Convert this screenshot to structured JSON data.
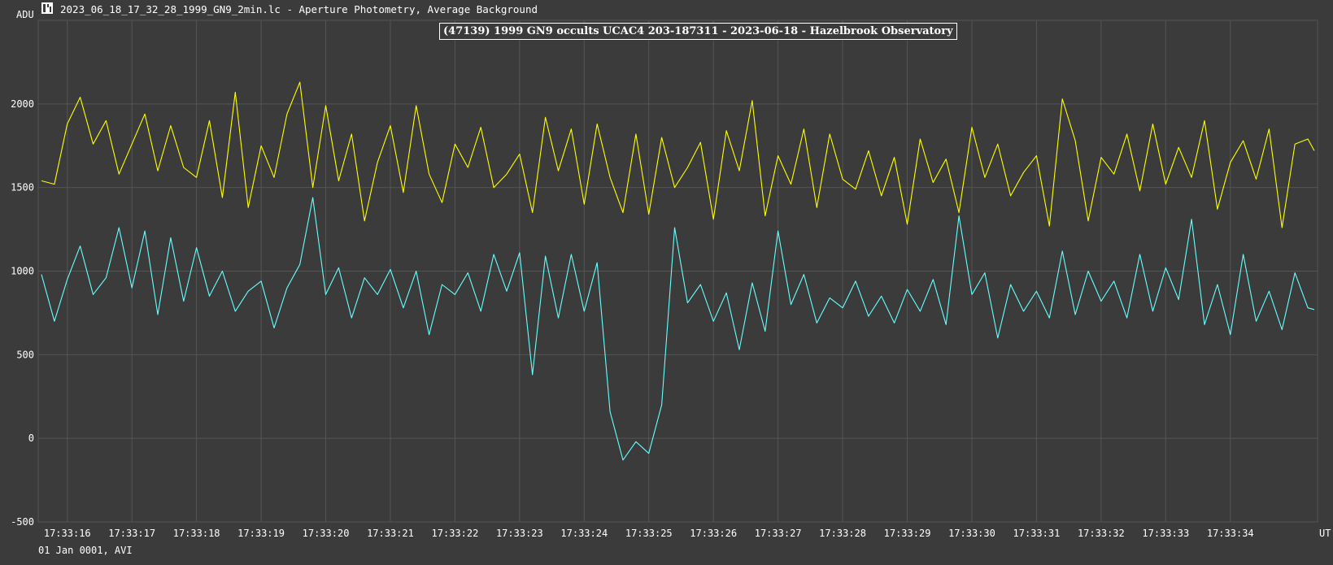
{
  "header": {
    "y_unit": "ADU",
    "file_title": "2023_06_18_17_32_28_1999_GN9_2min.lc - Aperture Photometry, Average Background",
    "icon": "lightcurve-app-icon"
  },
  "footer": {
    "x_unit": "UT",
    "date_info": "01 Jan 0001, AVI"
  },
  "colors": {
    "background": "#3b3b3b",
    "grid": "#555555",
    "comparison_series": "#ffff00",
    "target_series": "#66ffff",
    "text": "#ffffff"
  },
  "chart_data": {
    "type": "line",
    "title": "(47139) 1999 GN9 occults UCAC4 203-187311 - 2023-06-18 - Hazelbrook Observatory",
    "xlabel": "UT",
    "ylabel": "ADU",
    "ylim": [
      -500,
      2500
    ],
    "xlim": [
      "17:33:15.55",
      "17:33:35.35"
    ],
    "grid": true,
    "legend": "none",
    "y_ticks": [
      -500,
      0,
      500,
      1000,
      1500,
      2000
    ],
    "x_ticks": [
      "17:33:16",
      "17:33:17",
      "17:33:18",
      "17:33:19",
      "17:33:20",
      "17:33:21",
      "17:33:22",
      "17:33:23",
      "17:33:24",
      "17:33:25",
      "17:33:26",
      "17:33:27",
      "17:33:28",
      "17:33:29",
      "17:33:30",
      "17:33:31",
      "17:33:32",
      "17:33:33",
      "17:33:34"
    ],
    "series": [
      {
        "color": "#ffff00",
        "x": [
          "17:33:15.6",
          "17:33:15.8",
          "17:33:16.0",
          "17:33:16.2",
          "17:33:16.4",
          "17:33:16.6",
          "17:33:16.8",
          "17:33:17.0",
          "17:33:17.2",
          "17:33:17.4",
          "17:33:17.6",
          "17:33:17.8",
          "17:33:18.0",
          "17:33:18.2",
          "17:33:18.4",
          "17:33:18.6",
          "17:33:18.8",
          "17:33:19.0",
          "17:33:19.2",
          "17:33:19.4",
          "17:33:19.6",
          "17:33:19.8",
          "17:33:20.0",
          "17:33:20.2",
          "17:33:20.4",
          "17:33:20.6",
          "17:33:20.8",
          "17:33:21.0",
          "17:33:21.2",
          "17:33:21.4",
          "17:33:21.6",
          "17:33:21.8",
          "17:33:22.0",
          "17:33:22.2",
          "17:33:22.4",
          "17:33:22.6",
          "17:33:22.8",
          "17:33:23.0",
          "17:33:23.2",
          "17:33:23.4",
          "17:33:23.6",
          "17:33:23.8",
          "17:33:24.0",
          "17:33:24.2",
          "17:33:24.4",
          "17:33:24.6",
          "17:33:24.8",
          "17:33:25.0",
          "17:33:25.2",
          "17:33:25.4",
          "17:33:25.6",
          "17:33:25.8",
          "17:33:26.0",
          "17:33:26.2",
          "17:33:26.4",
          "17:33:26.6",
          "17:33:26.8",
          "17:33:27.0",
          "17:33:27.2",
          "17:33:27.4",
          "17:33:27.6",
          "17:33:27.8",
          "17:33:28.0",
          "17:33:28.2",
          "17:33:28.4",
          "17:33:28.6",
          "17:33:28.8",
          "17:33:29.0",
          "17:33:29.2",
          "17:33:29.4",
          "17:33:29.6",
          "17:33:29.8",
          "17:33:30.0",
          "17:33:30.2",
          "17:33:30.4",
          "17:33:30.6",
          "17:33:30.8",
          "17:33:31.0",
          "17:33:31.2",
          "17:33:31.4",
          "17:33:31.6",
          "17:33:31.8",
          "17:33:32.0",
          "17:33:32.2",
          "17:33:32.4",
          "17:33:32.6",
          "17:33:32.8",
          "17:33:33.0",
          "17:33:33.2",
          "17:33:33.4",
          "17:33:33.6",
          "17:33:33.8",
          "17:33:34.0",
          "17:33:34.2",
          "17:33:34.4",
          "17:33:34.6",
          "17:33:34.8",
          "17:33:35.0",
          "17:33:35.2",
          "17:33:35.3"
        ],
        "values": [
          1540,
          1520,
          1880,
          2040,
          1760,
          1900,
          1580,
          1760,
          1940,
          1600,
          1870,
          1620,
          1560,
          1900,
          1440,
          2070,
          1380,
          1750,
          1560,
          1940,
          2130,
          1500,
          1990,
          1540,
          1820,
          1300,
          1650,
          1870,
          1470,
          1990,
          1580,
          1410,
          1760,
          1620,
          1860,
          1500,
          1580,
          1700,
          1350,
          1920,
          1600,
          1850,
          1400,
          1880,
          1560,
          1350,
          1820,
          1340,
          1800,
          1500,
          1620,
          1770,
          1310,
          1840,
          1600,
          2020,
          1330,
          1690,
          1520,
          1850,
          1380,
          1820,
          1550,
          1490,
          1720,
          1450,
          1680,
          1280,
          1790,
          1530,
          1670,
          1350,
          1860,
          1560,
          1760,
          1450,
          1590,
          1690,
          1270,
          2030,
          1780,
          1300,
          1680,
          1580,
          1820,
          1480,
          1880,
          1520,
          1740,
          1560,
          1900,
          1370,
          1650,
          1780,
          1550,
          1850,
          1260,
          1760,
          1790,
          1720
        ]
      },
      {
        "color": "#66ffff",
        "x": [
          "17:33:15.6",
          "17:33:15.8",
          "17:33:16.0",
          "17:33:16.2",
          "17:33:16.4",
          "17:33:16.6",
          "17:33:16.8",
          "17:33:17.0",
          "17:33:17.2",
          "17:33:17.4",
          "17:33:17.6",
          "17:33:17.8",
          "17:33:18.0",
          "17:33:18.2",
          "17:33:18.4",
          "17:33:18.6",
          "17:33:18.8",
          "17:33:19.0",
          "17:33:19.2",
          "17:33:19.4",
          "17:33:19.6",
          "17:33:19.8",
          "17:33:20.0",
          "17:33:20.2",
          "17:33:20.4",
          "17:33:20.6",
          "17:33:20.8",
          "17:33:21.0",
          "17:33:21.2",
          "17:33:21.4",
          "17:33:21.6",
          "17:33:21.8",
          "17:33:22.0",
          "17:33:22.2",
          "17:33:22.4",
          "17:33:22.6",
          "17:33:22.8",
          "17:33:23.0",
          "17:33:23.2",
          "17:33:23.4",
          "17:33:23.6",
          "17:33:23.8",
          "17:33:24.0",
          "17:33:24.2",
          "17:33:24.4",
          "17:33:24.6",
          "17:33:24.8",
          "17:33:25.0",
          "17:33:25.2",
          "17:33:25.4",
          "17:33:25.6",
          "17:33:25.8",
          "17:33:26.0",
          "17:33:26.2",
          "17:33:26.4",
          "17:33:26.6",
          "17:33:26.8",
          "17:33:27.0",
          "17:33:27.2",
          "17:33:27.4",
          "17:33:27.6",
          "17:33:27.8",
          "17:33:28.0",
          "17:33:28.2",
          "17:33:28.4",
          "17:33:28.6",
          "17:33:28.8",
          "17:33:29.0",
          "17:33:29.2",
          "17:33:29.4",
          "17:33:29.6",
          "17:33:29.8",
          "17:33:30.0",
          "17:33:30.2",
          "17:33:30.4",
          "17:33:30.6",
          "17:33:30.8",
          "17:33:31.0",
          "17:33:31.2",
          "17:33:31.4",
          "17:33:31.6",
          "17:33:31.8",
          "17:33:32.0",
          "17:33:32.2",
          "17:33:32.4",
          "17:33:32.6",
          "17:33:32.8",
          "17:33:33.0",
          "17:33:33.2",
          "17:33:33.4",
          "17:33:33.6",
          "17:33:33.8",
          "17:33:34.0",
          "17:33:34.2",
          "17:33:34.4",
          "17:33:34.6",
          "17:33:34.8",
          "17:33:35.0",
          "17:33:35.2",
          "17:33:35.3"
        ],
        "values": [
          980,
          700,
          950,
          1150,
          860,
          960,
          1260,
          900,
          1240,
          740,
          1200,
          820,
          1140,
          850,
          1000,
          760,
          880,
          940,
          660,
          900,
          1040,
          1440,
          860,
          1020,
          720,
          960,
          860,
          1010,
          780,
          1000,
          620,
          920,
          860,
          990,
          760,
          1100,
          880,
          1110,
          380,
          1090,
          720,
          1100,
          760,
          1050,
          160,
          -130,
          -20,
          -90,
          200,
          1260,
          810,
          920,
          700,
          870,
          530,
          930,
          640,
          1240,
          800,
          980,
          690,
          840,
          780,
          940,
          730,
          850,
          690,
          890,
          760,
          950,
          680,
          1330,
          860,
          990,
          600,
          920,
          760,
          880,
          720,
          1120,
          740,
          1000,
          820,
          940,
          720,
          1100,
          760,
          1020,
          830,
          1310,
          680,
          920,
          620,
          1100,
          700,
          880,
          650,
          990,
          780,
          770
        ]
      }
    ]
  }
}
